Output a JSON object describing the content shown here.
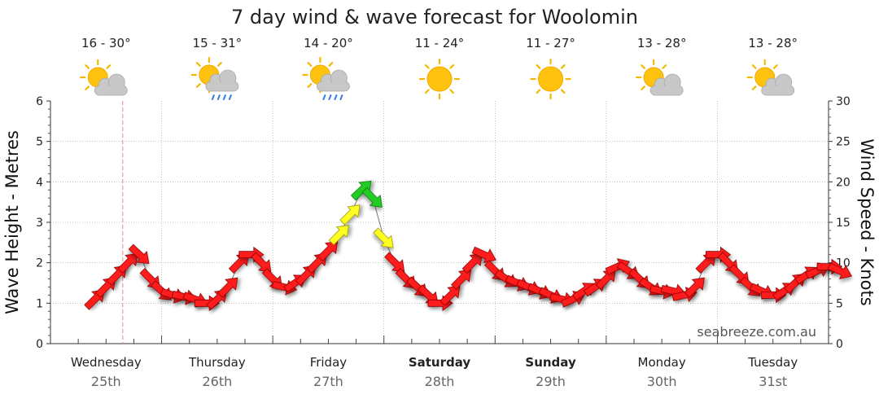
{
  "chart_data": {
    "type": "line",
    "title": "7 day wind & wave forecast for Woolomin",
    "watermark": "seabreeze.com.au",
    "ylabel_left": "Wave Height - Metres",
    "ylabel_right": "Wind Speed - Knots",
    "ylim_left": [
      0,
      6
    ],
    "ylim_right": [
      0,
      30
    ],
    "yticks_left": [
      "0",
      "1",
      "2",
      "3",
      "4",
      "5",
      "6"
    ],
    "yticks_right": [
      "0",
      "5",
      "10",
      "15",
      "20",
      "25",
      "30"
    ],
    "days": [
      {
        "name": "Wednesday",
        "date": "25th",
        "bold": false,
        "temp": "16 - 30°",
        "icon": "partly-cloudy-icon"
      },
      {
        "name": "Thursday",
        "date": "26th",
        "bold": false,
        "temp": "15 - 31°",
        "icon": "cloud-rain-icon"
      },
      {
        "name": "Friday",
        "date": "27th",
        "bold": false,
        "temp": "14 - 20°",
        "icon": "cloud-rain-icon"
      },
      {
        "name": "Saturday",
        "date": "28th",
        "bold": true,
        "temp": "11 - 24°",
        "icon": "sun-icon"
      },
      {
        "name": "Sunday",
        "date": "29th",
        "bold": true,
        "temp": "11 - 27°",
        "icon": "sun-icon"
      },
      {
        "name": "Monday",
        "date": "30th",
        "bold": false,
        "temp": "13 - 28°",
        "icon": "partly-cloudy-icon"
      },
      {
        "name": "Tuesday",
        "date": "31st",
        "bold": false,
        "temp": "13 - 28°",
        "icon": "partly-cloudy-icon"
      }
    ],
    "current_time_day": 0.65,
    "series": [
      {
        "name": "wind",
        "unit": "knots",
        "x_days": [
          0.4,
          0.5,
          0.6,
          0.7,
          0.8,
          0.9,
          1.0,
          1.1,
          1.2,
          1.3,
          1.4,
          1.5,
          1.6,
          1.7,
          1.8,
          1.9,
          2.0,
          2.1,
          2.2,
          2.3,
          2.4,
          2.5,
          2.6,
          2.7,
          2.8,
          2.9,
          3.0,
          3.1,
          3.2,
          3.3,
          3.4,
          3.5,
          3.6,
          3.7,
          3.8,
          3.9,
          4.0,
          4.1,
          4.2,
          4.3,
          4.4,
          4.5,
          4.6,
          4.7,
          4.8,
          4.9,
          5.0,
          5.1,
          5.2,
          5.3,
          5.4,
          5.5,
          5.6,
          5.7,
          5.8,
          5.9,
          6.0,
          6.1,
          6.2,
          6.3,
          6.4,
          6.5,
          6.6,
          6.7,
          6.8,
          6.9,
          7.0,
          7.1
        ],
        "values": [
          5.5,
          7,
          8.5,
          10,
          11,
          8,
          6.5,
          6,
          5.8,
          5.5,
          5,
          5.5,
          7,
          10,
          11,
          10,
          8,
          7,
          7.5,
          8.5,
          10,
          11.5,
          13.5,
          16,
          19,
          18,
          13,
          10,
          8,
          7,
          6,
          5,
          6,
          8,
          10,
          11,
          9,
          8,
          7.5,
          7,
          6.5,
          6,
          5.5,
          5.5,
          6.5,
          7,
          8,
          9.5,
          9,
          8,
          7,
          6.5,
          6.5,
          6,
          7,
          10,
          11,
          10,
          8.5,
          7,
          6.5,
          6,
          6.5,
          7.5,
          8.5,
          9,
          9.5,
          9
        ]
      }
    ]
  }
}
